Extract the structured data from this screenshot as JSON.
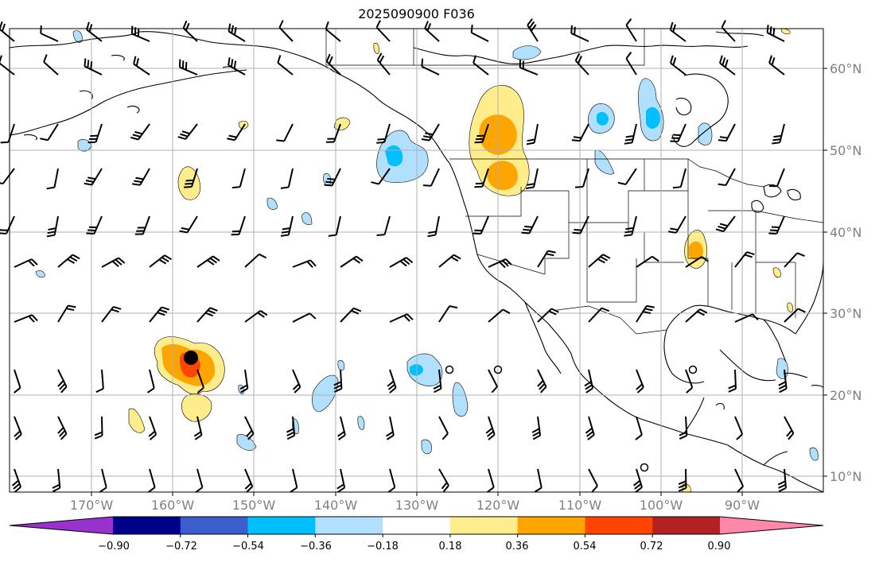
{
  "title": "2025090900 F036",
  "lat_labels": [
    "60°N",
    "50°N",
    "40°N",
    "30°N",
    "20°N",
    "10°N"
  ],
  "lon_labels": [
    "170°W",
    "160°W",
    "150°W",
    "140°W",
    "130°W",
    "120°W",
    "110°W",
    "100°W",
    "90°W"
  ],
  "colorbar": {
    "ticks": [
      "−0.90",
      "−0.72",
      "−0.54",
      "−0.36",
      "−0.18",
      "0.18",
      "0.36",
      "0.54",
      "0.72",
      "0.90"
    ],
    "colors": [
      "#9932cc",
      "#00008b",
      "#3a5fcd",
      "#00bfff",
      "#b0e0fe",
      "#ffffff",
      "#ffec8b",
      "#ffa500",
      "#ff4500",
      "#b22222",
      "#ff88aa"
    ]
  },
  "colors": {
    "light_blue": "#b0e0fe",
    "blue": "#00bfff",
    "yellow": "#ffec8b",
    "orange": "#ffa500",
    "red": "#ff4500",
    "grid": "#b0b0b0"
  }
}
